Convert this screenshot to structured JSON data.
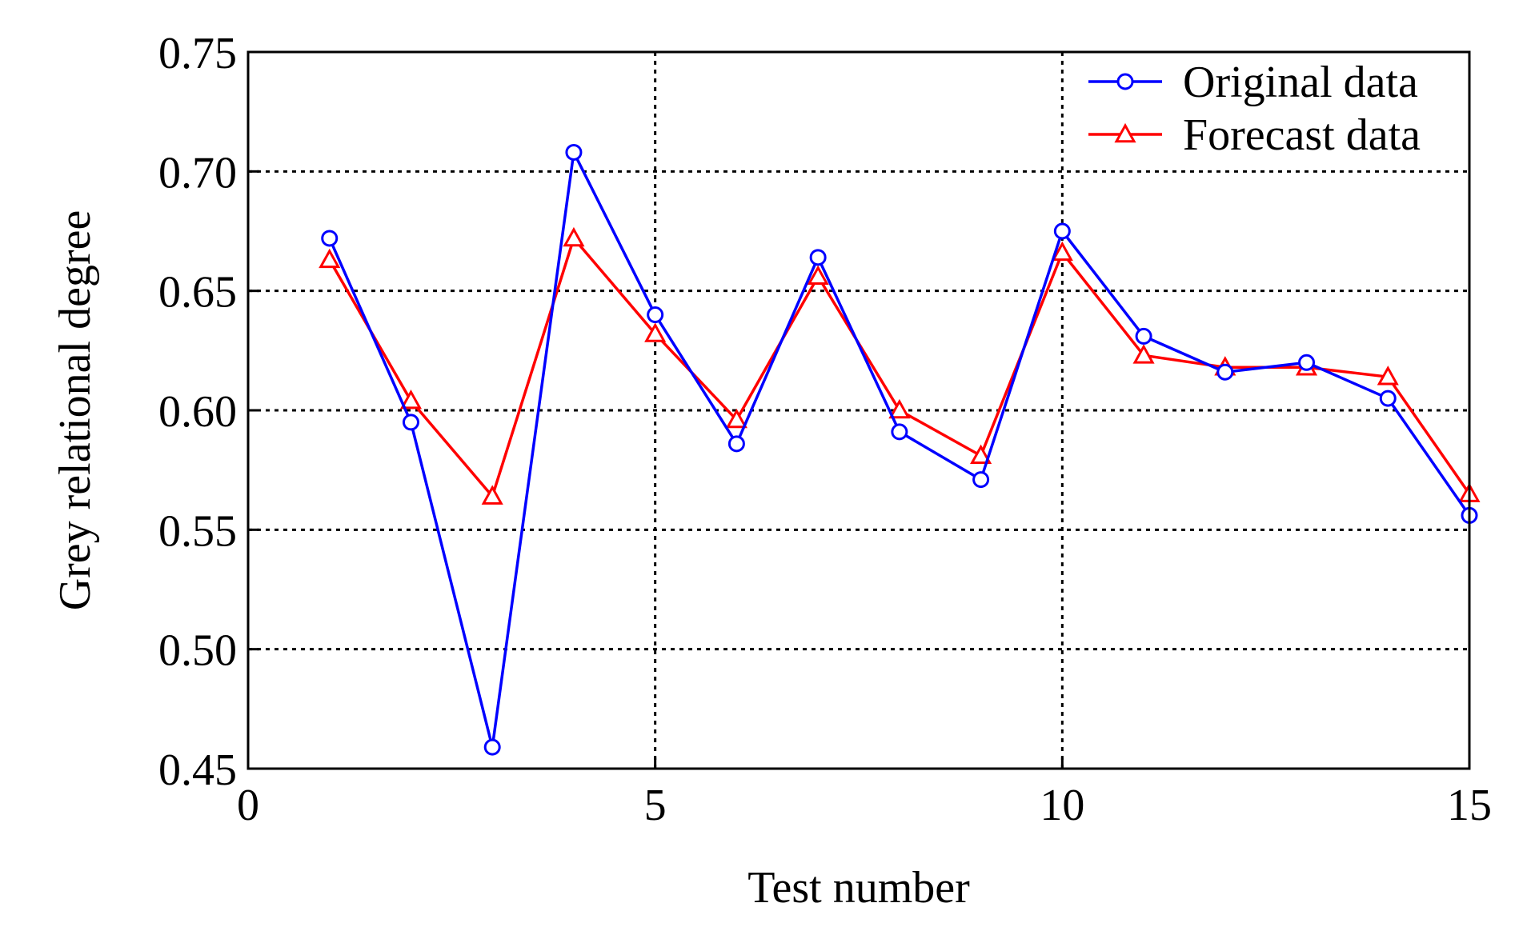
{
  "chart_data": {
    "type": "line",
    "xlabel": "Test number",
    "ylabel": "Grey relational degree",
    "xlim": [
      0,
      15
    ],
    "ylim": [
      0.45,
      0.75
    ],
    "xticks": [
      "0",
      "5",
      "10",
      "15"
    ],
    "yticks": [
      "0.45",
      "0.50",
      "0.55",
      "0.60",
      "0.65",
      "0.70",
      "0.75"
    ],
    "grid": true,
    "legend_position": "top-right",
    "x": [
      1,
      2,
      3,
      4,
      5,
      6,
      7,
      8,
      9,
      10,
      11,
      12,
      13,
      14,
      15
    ],
    "series": [
      {
        "name": "Original data",
        "color": "#0000ff",
        "marker": "circle",
        "values": [
          0.672,
          0.595,
          0.459,
          0.708,
          0.64,
          0.586,
          0.664,
          0.591,
          0.571,
          0.675,
          0.631,
          0.616,
          0.62,
          0.605,
          0.556
        ]
      },
      {
        "name": "Forecast data",
        "color": "#ff0000",
        "marker": "triangle",
        "values": [
          0.663,
          0.604,
          0.564,
          0.672,
          0.632,
          0.596,
          0.656,
          0.6,
          0.581,
          0.666,
          0.623,
          0.618,
          0.618,
          0.614,
          0.565
        ]
      }
    ]
  }
}
